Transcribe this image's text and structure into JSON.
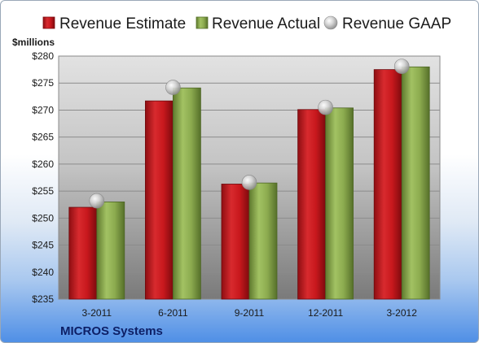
{
  "chart_data": {
    "type": "bar",
    "title": "",
    "ylabel": "$millions",
    "footer": "MICROS Systems",
    "categories": [
      "3-2011",
      "6-2011",
      "9-2011",
      "12-2011",
      "3-2012"
    ],
    "series": [
      {
        "name": "Revenue Estimate",
        "kind": "bar",
        "color": "#c0161c",
        "values": [
          252.0,
          271.7,
          256.3,
          270.1,
          277.5
        ]
      },
      {
        "name": "Revenue Actual",
        "kind": "bar",
        "color": "#8cab4f",
        "values": [
          253.0,
          274.1,
          256.5,
          270.4,
          278.0
        ]
      },
      {
        "name": "Revenue GAAP",
        "kind": "marker",
        "color": "#c8c8c8",
        "values": [
          253.2,
          274.2,
          256.6,
          270.5,
          278.1
        ]
      }
    ],
    "ylim": [
      235,
      280
    ],
    "ytick_step": 5,
    "ytick_labels": [
      "$235",
      "$240",
      "$245",
      "$250",
      "$255",
      "$260",
      "$265",
      "$270",
      "$275",
      "$280"
    ],
    "grid": true,
    "legend_position": "top"
  }
}
